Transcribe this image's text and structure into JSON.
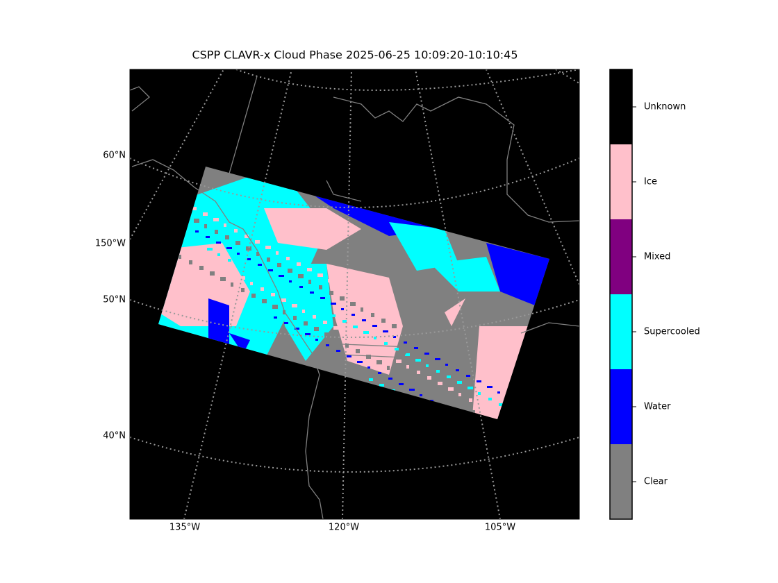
{
  "title": "CSPP CLAVR-x Cloud Phase 2025-06-25 10:09:20-10:10:45",
  "graticule": {
    "lat_labels": [
      "60°N",
      "50°N",
      "40°N"
    ],
    "lon_labels_left": [
      "150°W"
    ],
    "lon_labels_bottom": [
      "135°W",
      "120°W",
      "105°W"
    ]
  },
  "colorbar": {
    "classes": [
      {
        "name": "Clear",
        "color": "#808080"
      },
      {
        "name": "Water",
        "color": "#0000ff"
      },
      {
        "name": "Supercooled",
        "color": "#00ffff"
      },
      {
        "name": "Mixed",
        "color": "#800080"
      },
      {
        "name": "Ice",
        "color": "#ffc0cb"
      },
      {
        "name": "Unknown",
        "color": "#000000"
      }
    ]
  }
}
